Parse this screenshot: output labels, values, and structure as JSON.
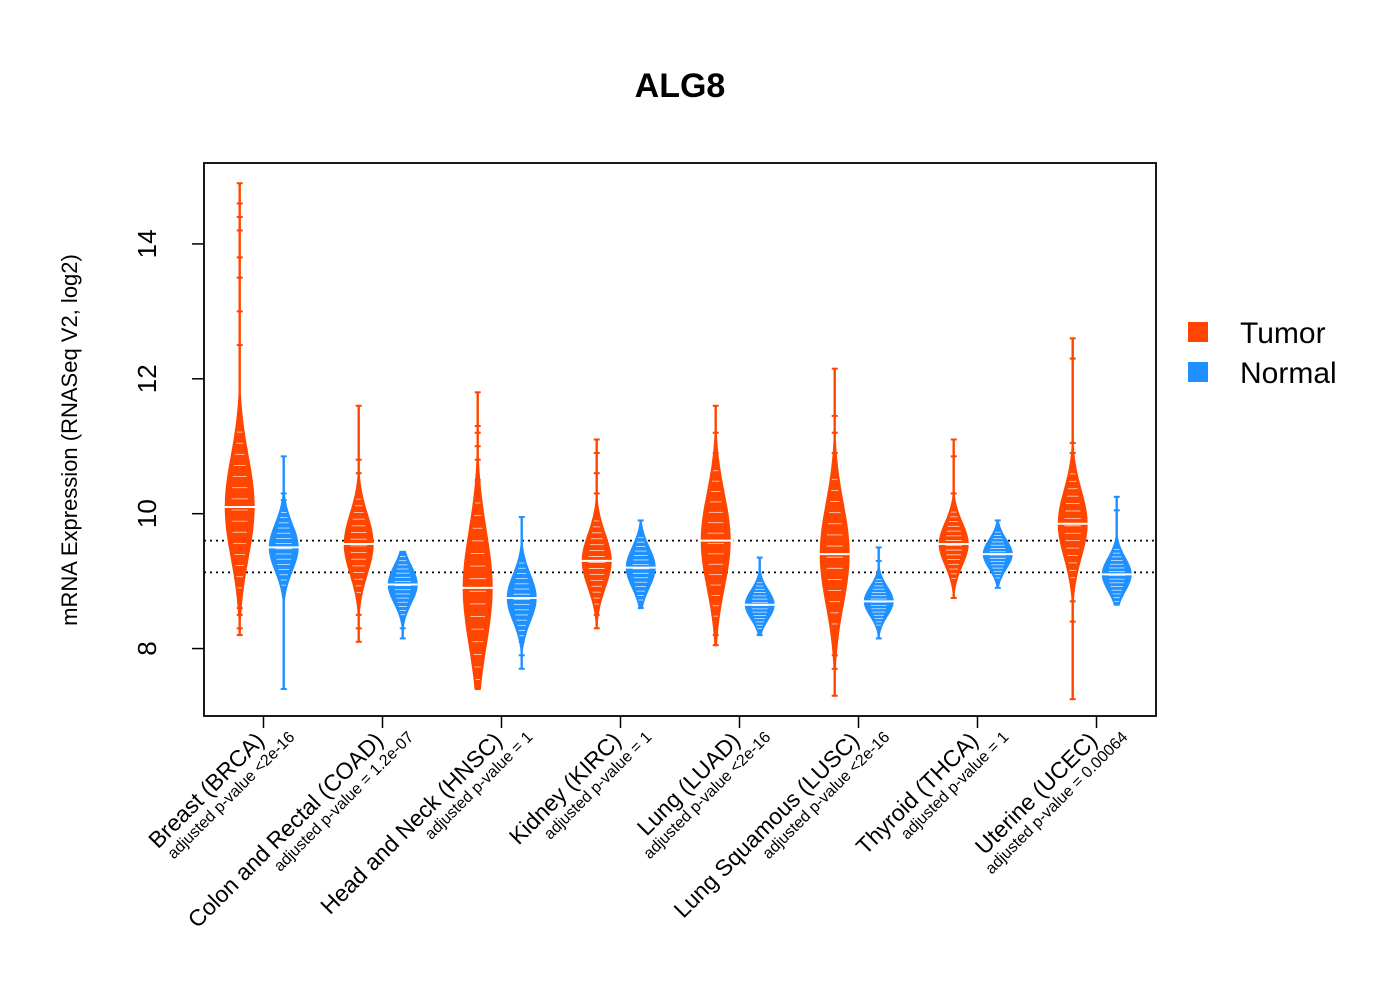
{
  "chart_data": {
    "type": "beanplot",
    "title": "ALG8",
    "xlabel": "",
    "ylabel": "mRNA Expression (RNASeq V2, log2)",
    "ylim": [
      7.0,
      15.2
    ],
    "yticks": [
      8,
      10,
      12,
      14
    ],
    "grid": false,
    "reference_lines": [
      9.6,
      9.13
    ],
    "legend": {
      "position": "right",
      "entries": [
        {
          "label": "Tumor",
          "color": "#FF4500"
        },
        {
          "label": "Normal",
          "color": "#1E90FF"
        }
      ]
    },
    "categories": [
      {
        "label": "Breast (BRCA)",
        "pvalue": "adjusted p-value <2e-16"
      },
      {
        "label": "Colon and Rectal (COAD)",
        "pvalue": "adjusted p-value = 1.2e-07"
      },
      {
        "label": "Head and Neck (HNSC)",
        "pvalue": "adjusted p-value = 1"
      },
      {
        "label": "Kidney (KIRC)",
        "pvalue": "adjusted p-value = 1"
      },
      {
        "label": "Lung (LUAD)",
        "pvalue": "adjusted p-value <2e-16"
      },
      {
        "label": "Lung Squamous (LUSC)",
        "pvalue": "adjusted p-value <2e-16"
      },
      {
        "label": "Thyroid (THCA)",
        "pvalue": "adjusted p-value = 1"
      },
      {
        "label": "Uterine (UCEC)",
        "pvalue": "adjusted p-value = 0.00064"
      }
    ],
    "series": [
      {
        "name": "Tumor",
        "color": "#FF4500",
        "beans": [
          {
            "min": 8.2,
            "max": 14.9,
            "center": 10.1,
            "spread": 0.75,
            "outliers": [
              8.2,
              8.3,
              8.5,
              8.6,
              12.5,
              13.0,
              13.5,
              13.8,
              14.2,
              14.4,
              14.6,
              14.9
            ]
          },
          {
            "min": 8.1,
            "max": 11.6,
            "center": 9.55,
            "spread": 0.45,
            "outliers": [
              8.1,
              8.3,
              8.5,
              10.6,
              10.8,
              11.6
            ]
          },
          {
            "min": 7.4,
            "max": 11.8,
            "center": 8.9,
            "spread": 0.85,
            "outliers": [
              7.4,
              7.6,
              7.8,
              8.0,
              10.5,
              10.8,
              11.0,
              11.2,
              11.3,
              11.8
            ]
          },
          {
            "min": 8.3,
            "max": 11.1,
            "center": 9.3,
            "spread": 0.4,
            "outliers": [
              8.3,
              8.5,
              10.3,
              10.6,
              10.9,
              11.1
            ]
          },
          {
            "min": 8.05,
            "max": 11.6,
            "center": 9.6,
            "spread": 0.7,
            "outliers": [
              8.05,
              8.2,
              8.4,
              10.9,
              11.2,
              11.6
            ]
          },
          {
            "min": 7.3,
            "max": 12.15,
            "center": 9.4,
            "spread": 0.75,
            "outliers": [
              7.3,
              7.7,
              7.9,
              8.2,
              10.6,
              10.9,
              11.2,
              11.45,
              12.15
            ]
          },
          {
            "min": 8.75,
            "max": 11.1,
            "center": 9.55,
            "spread": 0.32,
            "outliers": [
              8.75,
              10.3,
              10.85,
              11.1
            ]
          },
          {
            "min": 7.25,
            "max": 12.6,
            "center": 9.85,
            "spread": 0.5,
            "outliers": [
              7.25,
              8.4,
              8.7,
              10.9,
              11.05,
              12.3,
              12.6
            ]
          }
        ]
      },
      {
        "name": "Normal",
        "color": "#1E90FF",
        "beans": [
          {
            "min": 7.4,
            "max": 10.85,
            "center": 9.5,
            "spread": 0.35,
            "outliers": [
              7.4,
              8.9,
              10.2,
              10.3,
              10.85
            ]
          },
          {
            "min": 8.15,
            "max": 9.45,
            "center": 8.95,
            "spread": 0.28,
            "outliers": [
              8.15,
              8.3
            ]
          },
          {
            "min": 7.7,
            "max": 9.95,
            "center": 8.75,
            "spread": 0.35,
            "outliers": [
              7.7,
              7.9,
              8.1,
              9.95
            ]
          },
          {
            "min": 8.6,
            "max": 9.9,
            "center": 9.2,
            "spread": 0.3,
            "outliers": [
              8.6,
              9.9
            ]
          },
          {
            "min": 8.2,
            "max": 9.35,
            "center": 8.65,
            "spread": 0.22,
            "outliers": [
              8.2,
              9.35
            ]
          },
          {
            "min": 8.15,
            "max": 9.5,
            "center": 8.7,
            "spread": 0.22,
            "outliers": [
              8.15,
              9.3,
              9.5
            ]
          },
          {
            "min": 8.9,
            "max": 9.9,
            "center": 9.4,
            "spread": 0.22,
            "outliers": [
              8.9,
              9.9
            ]
          },
          {
            "min": 8.65,
            "max": 10.25,
            "center": 9.1,
            "spread": 0.25,
            "outliers": [
              8.65,
              10.05,
              10.25
            ]
          }
        ]
      }
    ]
  }
}
